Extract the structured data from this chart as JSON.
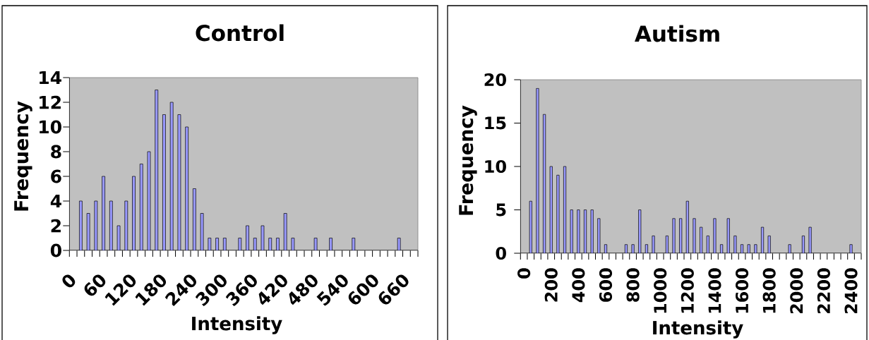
{
  "chart_data": [
    {
      "type": "bar",
      "title": "Control",
      "xlabel": "Intensity",
      "ylabel": "Frequency",
      "categories": [
        "0",
        null,
        null,
        null,
        "60",
        null,
        null,
        null,
        "120",
        null,
        null,
        null,
        "180",
        null,
        null,
        null,
        "240",
        null,
        null,
        null,
        "300",
        null,
        null,
        null,
        "360",
        null,
        null,
        null,
        "420",
        null,
        null,
        null,
        "480",
        null,
        null,
        null,
        "540",
        null,
        null,
        null,
        "600",
        null,
        null,
        null,
        "660",
        null
      ],
      "values": [
        0,
        4,
        3,
        4,
        6,
        4,
        2,
        4,
        6,
        7,
        8,
        13,
        11,
        12,
        11,
        10,
        5,
        3,
        1,
        1,
        1,
        0,
        1,
        2,
        1,
        2,
        1,
        1,
        3,
        1,
        0,
        0,
        1,
        0,
        1,
        0,
        0,
        1,
        0,
        0,
        0,
        0,
        0,
        1,
        0,
        0
      ],
      "color": "#9999ff",
      "ylim": [
        0,
        14
      ],
      "yticks": [
        0,
        2,
        4,
        6,
        8,
        10,
        12,
        14
      ]
    },
    {
      "type": "bar",
      "title": "Autism",
      "xlabel": "Intensity",
      "ylabel": "Frequency",
      "categories": [
        "0",
        null,
        null,
        null,
        "200",
        null,
        null,
        null,
        "400",
        null,
        null,
        null,
        "600",
        null,
        null,
        null,
        "800",
        null,
        null,
        null,
        "1000",
        null,
        null,
        null,
        "1200",
        null,
        null,
        null,
        "1400",
        null,
        null,
        null,
        "1600",
        null,
        null,
        null,
        "1800",
        null,
        null,
        null,
        "2000",
        null,
        null,
        null,
        "2200",
        null,
        null,
        null,
        "2400",
        null
      ],
      "values": [
        0,
        6,
        19,
        16,
        10,
        9,
        10,
        5,
        5,
        5,
        5,
        4,
        1,
        0,
        0,
        1,
        1,
        5,
        1,
        2,
        0,
        2,
        4,
        4,
        6,
        4,
        3,
        2,
        4,
        1,
        4,
        2,
        1,
        1,
        1,
        3,
        2,
        0,
        0,
        1,
        0,
        2,
        3,
        0,
        0,
        0,
        0,
        0,
        1,
        0
      ],
      "color": "#9999ff",
      "ylim": [
        0,
        20
      ],
      "yticks": [
        0,
        5,
        10,
        15,
        20
      ]
    }
  ]
}
